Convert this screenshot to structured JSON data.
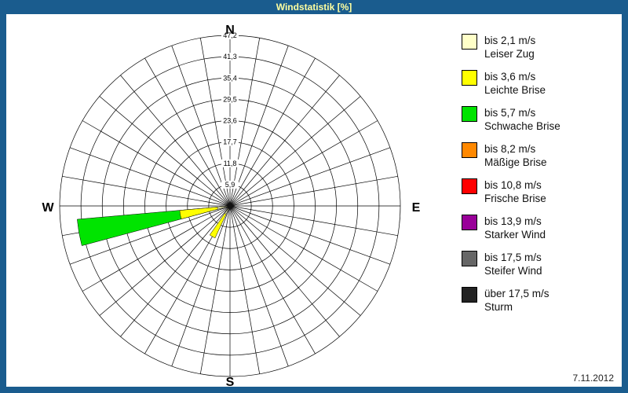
{
  "window": {
    "title": "Windstatistik [%]",
    "date": "7.11.2012",
    "frame_color": "#1a5c8e",
    "title_text_color": "#ffffa0"
  },
  "legend": {
    "items": [
      {
        "speed": "bis 2,1 m/s",
        "name": "Leiser Zug",
        "color": "#ffffc8"
      },
      {
        "speed": "bis 3,6 m/s",
        "name": "Leichte Brise",
        "color": "#ffff00"
      },
      {
        "speed": "bis 5,7 m/s",
        "name": "Schwache Brise",
        "color": "#00e400"
      },
      {
        "speed": "bis 8,2 m/s",
        "name": "Mäßige Brise",
        "color": "#ff8800"
      },
      {
        "speed": "bis 10,8 m/s",
        "name": "Frische Brise",
        "color": "#ff0000"
      },
      {
        "speed": "bis 13,9 m/s",
        "name": "Starker Wind",
        "color": "#990099"
      },
      {
        "speed": "bis 17,5 m/s",
        "name": "Steifer Wind",
        "color": "#666666"
      },
      {
        "speed": "über 17,5 m/s",
        "name": "Sturm",
        "color": "#222222"
      }
    ]
  },
  "chart_data": {
    "type": "wind-rose",
    "title": "Windstatistik [%]",
    "units": "%",
    "sectors": 36,
    "sector_width_deg": 10,
    "rings": [
      5.9,
      11.8,
      17.7,
      23.6,
      29.5,
      35.4,
      41.3,
      47.2
    ],
    "ring_labels": [
      "5,9",
      "11,8",
      "17,7",
      "23,6",
      "29,5",
      "35,4",
      "41,3",
      "47,2"
    ],
    "max": 47.2,
    "compass": {
      "n": "N",
      "e": "E",
      "s": "S",
      "w": "W"
    },
    "wedges": [
      {
        "direction_deg": 260,
        "value_pct": 42.5,
        "speed_class": "bis 5,7 m/s",
        "color": "#00e400"
      },
      {
        "direction_deg": 260,
        "value_pct": 14.0,
        "speed_class": "bis 3,6 m/s",
        "color": "#ffff00"
      },
      {
        "direction_deg": 260,
        "value_pct": 3.5,
        "speed_class": "bis 2,1 m/s",
        "color": "#ffffc8"
      },
      {
        "direction_deg": 210,
        "value_pct": 9.8,
        "speed_class": "bis 3,6 m/s",
        "color": "#ffff00"
      },
      {
        "direction_deg": 210,
        "value_pct": 2.5,
        "speed_class": "bis 2,1 m/s",
        "color": "#ffffc8"
      }
    ],
    "center_dot": {
      "radius_px": 3.5,
      "color": "#111111"
    },
    "grid_color": "#000000",
    "legend_position": "right"
  }
}
